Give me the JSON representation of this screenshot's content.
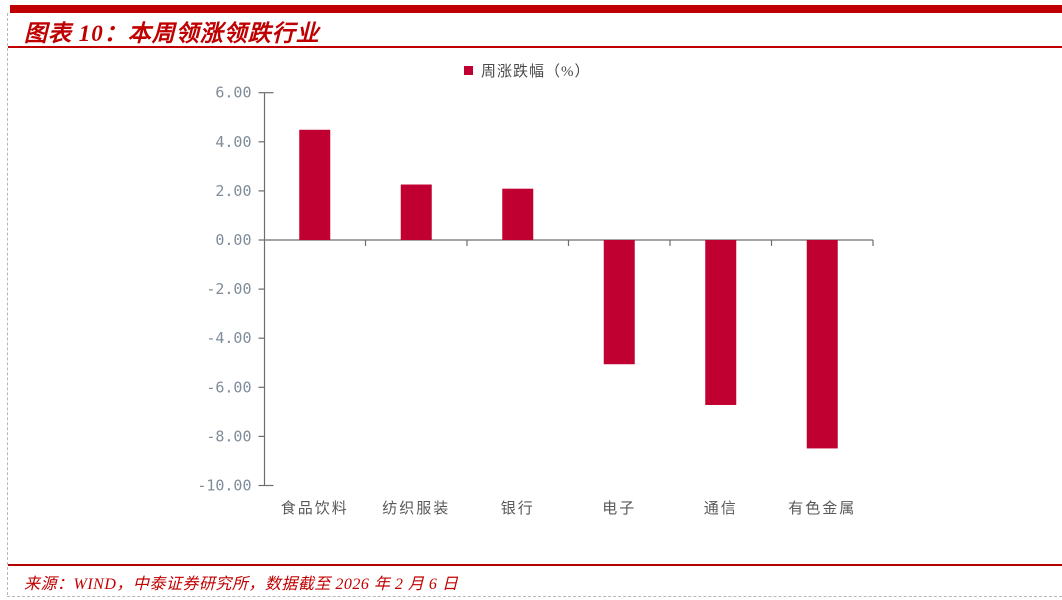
{
  "page": {
    "title_label": "图表 10：本周领涨领跌行业",
    "source_note": "来源：WIND，中泰证券研究所，数据截至 2026 年 2 月 6 日"
  },
  "chart_data": {
    "type": "bar",
    "title": "本周领涨领跌行业",
    "legend": [
      "周涨跌幅（%）"
    ],
    "legend_position": "top-center",
    "categories": [
      "食品饮料",
      "纺织服装",
      "银行",
      "电子",
      "通信",
      "有色金属"
    ],
    "series": [
      {
        "name": "周涨跌幅（%）",
        "values": [
          4.49,
          2.26,
          2.09,
          -5.06,
          -6.72,
          -8.49
        ]
      }
    ],
    "xlabel": "",
    "ylabel": "",
    "ylim": [
      -10,
      6
    ],
    "ytick_step": 2,
    "yticks": [
      "6.00",
      "4.00",
      "2.00",
      "0.00",
      "-2.00",
      "-4.00",
      "-6.00",
      "-8.00",
      "-10.00"
    ],
    "grid": false,
    "bar_color": "#C10032"
  },
  "colors": {
    "accent_bar_red": "#C00000",
    "title_red": "#C00000",
    "source_rule_red": "#B00000",
    "bar_red": "#C10032",
    "axis_gray": "#6e6e6e",
    "ytick_gray_blue": "#7F8C99",
    "category_gray": "#595959",
    "dash_gray": "#b8b8b8"
  }
}
